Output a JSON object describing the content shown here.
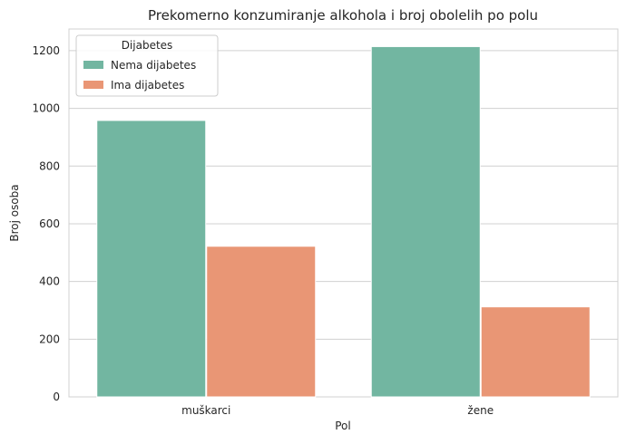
{
  "chart_data": {
    "type": "bar",
    "title": "Prekomerno konzumiranje alkohola i broj obolelih po polu",
    "xlabel": "Pol",
    "ylabel": "Broj osoba",
    "categories": [
      "muškarci",
      "žene"
    ],
    "series": [
      {
        "name": "Nema dijabetes",
        "values": [
          958,
          1214
        ],
        "color": "#72b6a1"
      },
      {
        "name": "Ima dijabetes",
        "values": [
          522,
          312
        ],
        "color": "#e99675"
      }
    ],
    "ylim": [
      0,
      1275
    ],
    "yticks": [
      0,
      200,
      400,
      600,
      800,
      1000,
      1200
    ],
    "grid": true,
    "legend": {
      "title": "Dijabetes",
      "position": "top-left"
    }
  }
}
